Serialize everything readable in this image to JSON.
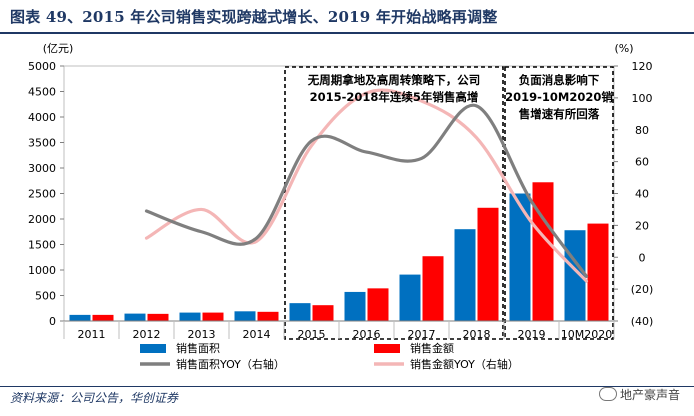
{
  "title": "图表 49、2015 年公司销售实现跨越式增长、2019 年开始战略再调整",
  "source": "资料来源：公司公告，华创证券",
  "watermark": "地产豪声音",
  "chart_data": {
    "type": "bar",
    "categories": [
      "2011",
      "2012",
      "2013",
      "2014",
      "2015",
      "2016",
      "2017",
      "2018",
      "2019",
      "10M2020"
    ],
    "y_left_label": "(亿元)",
    "y_right_label": "(%)",
    "y_left_range": [
      0,
      5000
    ],
    "y_left_ticks": [
      "0",
      "500",
      "1000",
      "1500",
      "2000",
      "2500",
      "3000",
      "3500",
      "4000",
      "4500",
      "5000"
    ],
    "y_right_range": [
      -40,
      120
    ],
    "y_right_ticks": [
      "(40)",
      "(20)",
      "0",
      "20",
      "40",
      "60",
      "80",
      "100",
      "120"
    ],
    "series": [
      {
        "name": "销售面积",
        "kind": "bar",
        "axis": "left",
        "color": "#0070c0",
        "values": [
          120,
          145,
          165,
          190,
          350,
          570,
          910,
          1800,
          2500,
          1780
        ]
      },
      {
        "name": "销售金额",
        "kind": "bar",
        "axis": "left",
        "color": "#ff0000",
        "values": [
          120,
          140,
          165,
          180,
          310,
          640,
          1270,
          2220,
          2720,
          1910
        ]
      },
      {
        "name": "销售面积YOY（右轴）",
        "kind": "line",
        "axis": "right",
        "color": "#7f7f7f",
        "values": [
          null,
          29,
          16,
          12,
          73,
          66,
          62,
          95,
          35,
          -12
        ]
      },
      {
        "name": "销售金额YOY（右轴）",
        "kind": "line",
        "axis": "right",
        "color": "#f4b6b6",
        "values": [
          null,
          12,
          30,
          10,
          70,
          103,
          98,
          75,
          22,
          -15
        ]
      }
    ],
    "annotations": [
      {
        "text_lines": [
          "无周期拿地及高周转策略下，公司",
          "2015-2018年连续5年销售高增"
        ],
        "span": [
          "2015",
          "2018"
        ]
      },
      {
        "text_lines": [
          "负面消息影响下",
          "2019-10M2020销",
          "售增速有所回落"
        ],
        "span": [
          "2019",
          "10M2020"
        ]
      }
    ]
  }
}
